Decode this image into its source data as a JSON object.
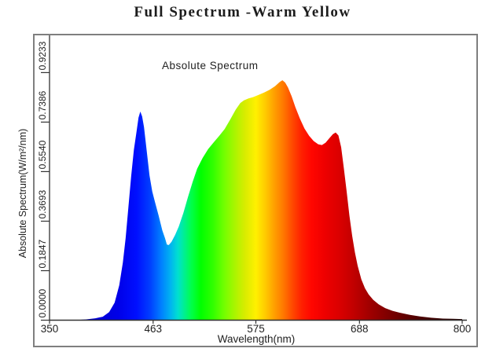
{
  "title": "Full Spectrum -Warm Yellow",
  "chart": {
    "legend": "Absolute Spectrum",
    "xlabel": "Wavelength(nm)",
    "ylabel": "Absolute Spectrum(W/m²/nm)",
    "x_tick_labels": [
      "350",
      "463",
      "575",
      "688",
      "800"
    ],
    "y_tick_labels": [
      "0.0000",
      "0.1847",
      "0.3693",
      "0.5540",
      "0.7386",
      "0.9233"
    ],
    "frame_color": "#7f7f7f",
    "axis_color": "#333333",
    "text_color": "#1f1f1f"
  },
  "chart_data": {
    "type": "area",
    "title": "Absolute Spectrum",
    "xlabel": "Wavelength(nm)",
    "ylabel": "Absolute Spectrum(W/m²/nm)",
    "xlim": [
      350,
      800
    ],
    "ylim": [
      0,
      0.9233
    ],
    "x_ticks": [
      350,
      463,
      575,
      688,
      800
    ],
    "y_ticks": [
      0.0,
      0.1847,
      0.3693,
      0.554,
      0.7386,
      0.9233
    ],
    "legend_position": "top-center-inside",
    "grid": false,
    "series": [
      {
        "name": "Absolute Spectrum",
        "units": "W/m²/nm vs nm",
        "points": [
          [
            380,
            0.001
          ],
          [
            390,
            0.003
          ],
          [
            400,
            0.007
          ],
          [
            408,
            0.013
          ],
          [
            415,
            0.03
          ],
          [
            421,
            0.065
          ],
          [
            426,
            0.13
          ],
          [
            430,
            0.215
          ],
          [
            433,
            0.305
          ],
          [
            436,
            0.42
          ],
          [
            439,
            0.535
          ],
          [
            442,
            0.635
          ],
          [
            445,
            0.705
          ],
          [
            447,
            0.755
          ],
          [
            449,
            0.778
          ],
          [
            451,
            0.76
          ],
          [
            453,
            0.72
          ],
          [
            456,
            0.63
          ],
          [
            459,
            0.54
          ],
          [
            462,
            0.48
          ],
          [
            465,
            0.44
          ],
          [
            469,
            0.39
          ],
          [
            473,
            0.335
          ],
          [
            476,
            0.305
          ],
          [
            478,
            0.282
          ],
          [
            480,
            0.28
          ],
          [
            483,
            0.292
          ],
          [
            487,
            0.318
          ],
          [
            491,
            0.35
          ],
          [
            496,
            0.4
          ],
          [
            501,
            0.46
          ],
          [
            506,
            0.515
          ],
          [
            511,
            0.565
          ],
          [
            517,
            0.605
          ],
          [
            523,
            0.638
          ],
          [
            529,
            0.663
          ],
          [
            535,
            0.687
          ],
          [
            541,
            0.713
          ],
          [
            547,
            0.748
          ],
          [
            553,
            0.785
          ],
          [
            558,
            0.81
          ],
          [
            562,
            0.82
          ],
          [
            567,
            0.827
          ],
          [
            572,
            0.832
          ],
          [
            578,
            0.84
          ],
          [
            584,
            0.849
          ],
          [
            590,
            0.859
          ],
          [
            596,
            0.873
          ],
          [
            601,
            0.888
          ],
          [
            604,
            0.895
          ],
          [
            607,
            0.886
          ],
          [
            610,
            0.868
          ],
          [
            614,
            0.835
          ],
          [
            618,
            0.795
          ],
          [
            623,
            0.752
          ],
          [
            628,
            0.715
          ],
          [
            633,
            0.688
          ],
          [
            638,
            0.668
          ],
          [
            643,
            0.656
          ],
          [
            647,
            0.653
          ],
          [
            651,
            0.662
          ],
          [
            655,
            0.678
          ],
          [
            659,
            0.694
          ],
          [
            662,
            0.7
          ],
          [
            665,
            0.689
          ],
          [
            668,
            0.645
          ],
          [
            671,
            0.565
          ],
          [
            674,
            0.48
          ],
          [
            677,
            0.39
          ],
          [
            680,
            0.315
          ],
          [
            683,
            0.253
          ],
          [
            686,
            0.203
          ],
          [
            690,
            0.152
          ],
          [
            694,
            0.119
          ],
          [
            698,
            0.096
          ],
          [
            703,
            0.076
          ],
          [
            709,
            0.059
          ],
          [
            716,
            0.045
          ],
          [
            724,
            0.035
          ],
          [
            733,
            0.027
          ],
          [
            743,
            0.02
          ],
          [
            754,
            0.014
          ],
          [
            766,
            0.009
          ],
          [
            779,
            0.006
          ],
          [
            790,
            0.005
          ],
          [
            800,
            0.004
          ]
        ]
      }
    ],
    "spectrum_gradient": [
      [
        350,
        "#0000B0"
      ],
      [
        425,
        "#0000E8"
      ],
      [
        445,
        "#000FFF"
      ],
      [
        460,
        "#0040FF"
      ],
      [
        472,
        "#0080FF"
      ],
      [
        482,
        "#00B4F0"
      ],
      [
        490,
        "#00E0D0"
      ],
      [
        497,
        "#00F090"
      ],
      [
        505,
        "#00FF48"
      ],
      [
        515,
        "#00FF00"
      ],
      [
        528,
        "#30FF00"
      ],
      [
        540,
        "#70FF00"
      ],
      [
        552,
        "#AAF500"
      ],
      [
        563,
        "#D8EC00"
      ],
      [
        575,
        "#FFF000"
      ],
      [
        585,
        "#FFCC00"
      ],
      [
        595,
        "#FFA000"
      ],
      [
        605,
        "#FF7800"
      ],
      [
        615,
        "#FF4800"
      ],
      [
        625,
        "#FF2000"
      ],
      [
        636,
        "#FF0600"
      ],
      [
        650,
        "#EE0000"
      ],
      [
        665,
        "#DC0000"
      ],
      [
        680,
        "#C40000"
      ],
      [
        697,
        "#A40000"
      ],
      [
        715,
        "#850000"
      ],
      [
        735,
        "#650000"
      ],
      [
        755,
        "#4B0000"
      ],
      [
        775,
        "#380000"
      ],
      [
        800,
        "#260000"
      ]
    ]
  }
}
